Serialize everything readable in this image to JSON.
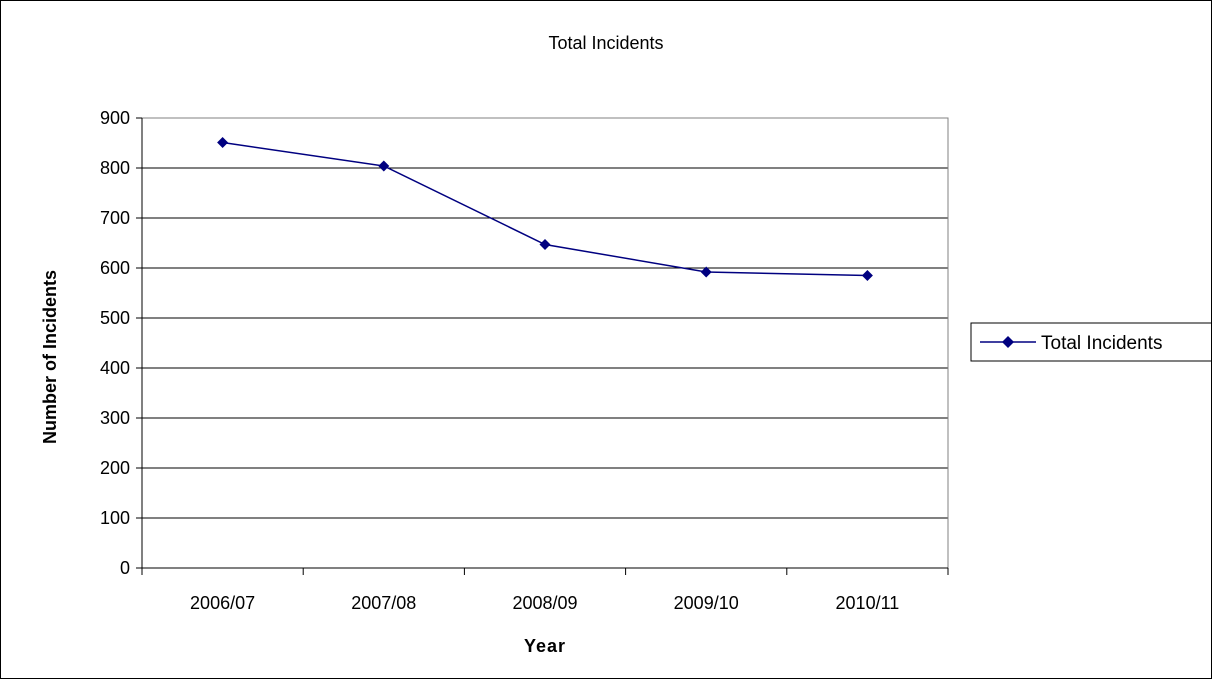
{
  "chart_data": {
    "type": "line",
    "title": "Total Incidents",
    "xlabel": "Year",
    "ylabel": "Number of Incidents",
    "categories": [
      "2006/07",
      "2007/08",
      "2008/09",
      "2009/10",
      "2010/11"
    ],
    "series": [
      {
        "name": "Total Incidents",
        "values": [
          851,
          804,
          647,
          592,
          585
        ]
      }
    ],
    "ylim": [
      0,
      900
    ],
    "yticks": [
      0,
      100,
      200,
      300,
      400,
      500,
      600,
      700,
      800,
      900
    ],
    "grid": true,
    "legend_position": "right",
    "colors": {
      "series": "#000080",
      "grid": "#000000",
      "plot_border": "#808080"
    }
  }
}
